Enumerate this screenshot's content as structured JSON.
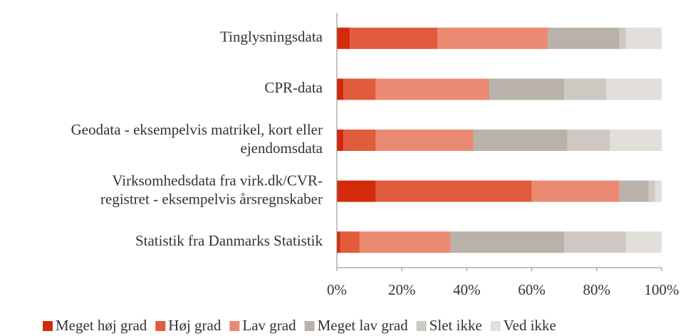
{
  "chart_data": {
    "type": "stacked_bar_horizontal",
    "categories": [
      [
        "Tinglysningsdata"
      ],
      [
        "CPR-data"
      ],
      [
        "Geodata - eksempelvis matrikel, kort eller",
        "ejendomsdata"
      ],
      [
        "Virksomhedsdata fra virk.dk/CVR-",
        "registret - eksempelvis årsregnskaber"
      ],
      [
        "Statistik fra Danmarks Statistik"
      ]
    ],
    "series": [
      {
        "name": "Meget høj grad",
        "color": "#d42a0c",
        "values": [
          4,
          2,
          2,
          12,
          1
        ]
      },
      {
        "name": "Høj grad",
        "color": "#e05c3c",
        "values": [
          27,
          10,
          10,
          48,
          6
        ]
      },
      {
        "name": "Lav grad",
        "color": "#eb8a72",
        "values": [
          34,
          35,
          30,
          27,
          28
        ]
      },
      {
        "name": "Meget lav grad",
        "color": "#b8b2aa",
        "values": [
          22,
          23,
          29,
          9,
          35
        ]
      },
      {
        "name": "Slet ikke",
        "color": "#cdc8c2",
        "values": [
          2,
          13,
          13,
          2,
          19
        ]
      },
      {
        "name": "Ved ikke",
        "color": "#e2dfdb",
        "values": [
          11,
          17,
          16,
          2,
          11
        ]
      }
    ],
    "xlim": [
      0,
      100
    ],
    "xticks": [
      {
        "value": 0,
        "label": "0%"
      },
      {
        "value": 20,
        "label": "20%"
      },
      {
        "value": 40,
        "label": "40%"
      },
      {
        "value": 60,
        "label": "60%"
      },
      {
        "value": 80,
        "label": "80%"
      },
      {
        "value": 100,
        "label": "100%"
      }
    ],
    "legend": "bottom"
  }
}
